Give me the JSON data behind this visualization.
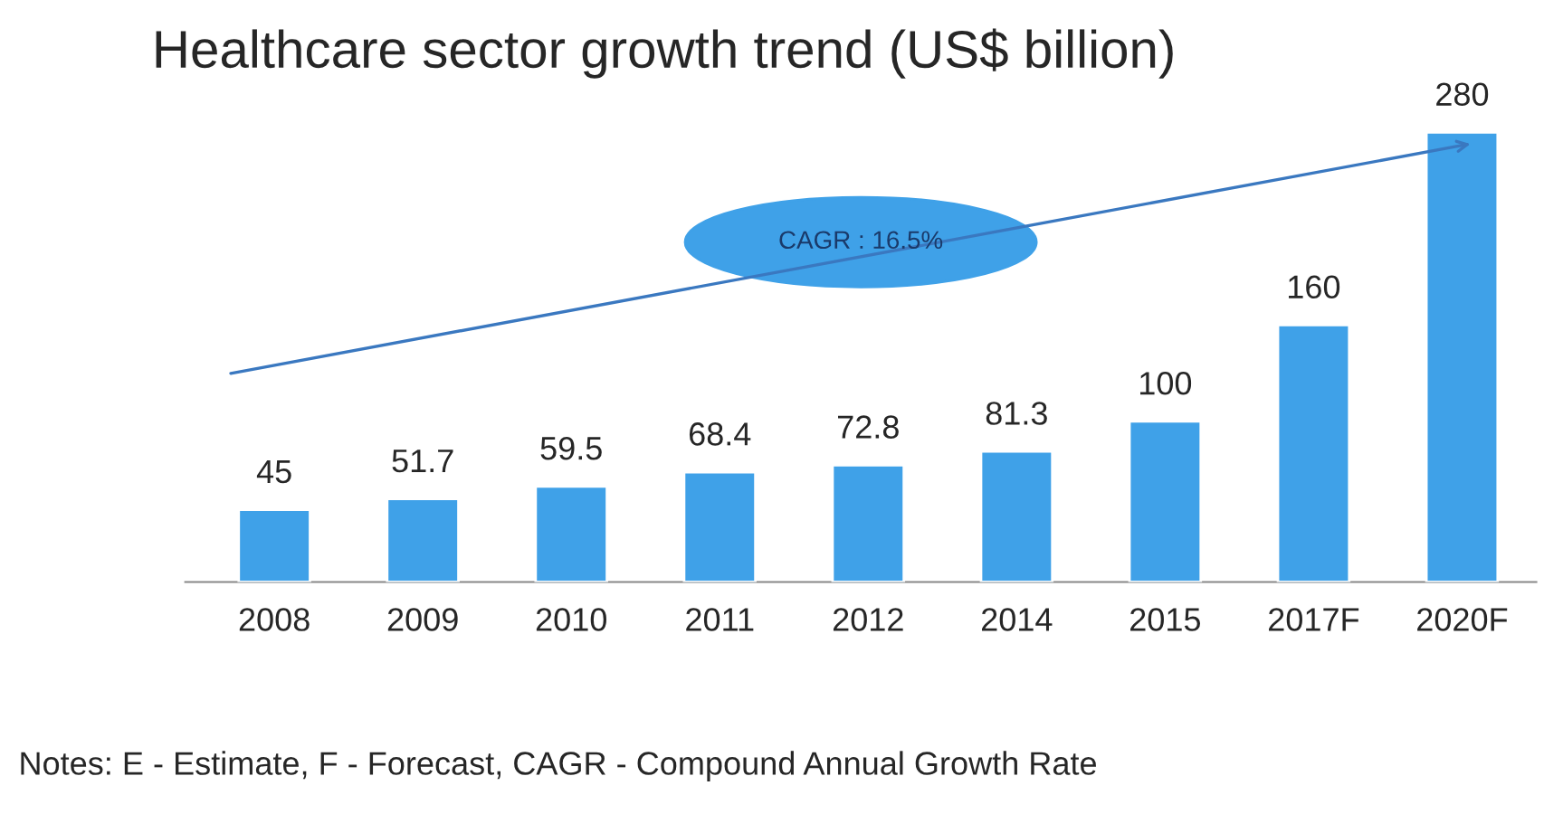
{
  "chart_data": {
    "type": "bar",
    "title": "Healthcare sector growth trend (US$ billion)",
    "categories": [
      "2008",
      "2009",
      "2010",
      "2011",
      "2012",
      "2014",
      "2015",
      "2017F",
      "2020F"
    ],
    "values": [
      45,
      51.7,
      59.5,
      68.4,
      72.8,
      81.3,
      100,
      160,
      280
    ],
    "color": "#3fa1e8",
    "data_labels": true,
    "grid": false,
    "legend": false,
    "annotations": [
      "CAGR : 16.5%",
      "Notes: E - Estimate, F - Forecast, CAGR - Compound Annual Growth Rate"
    ]
  }
}
